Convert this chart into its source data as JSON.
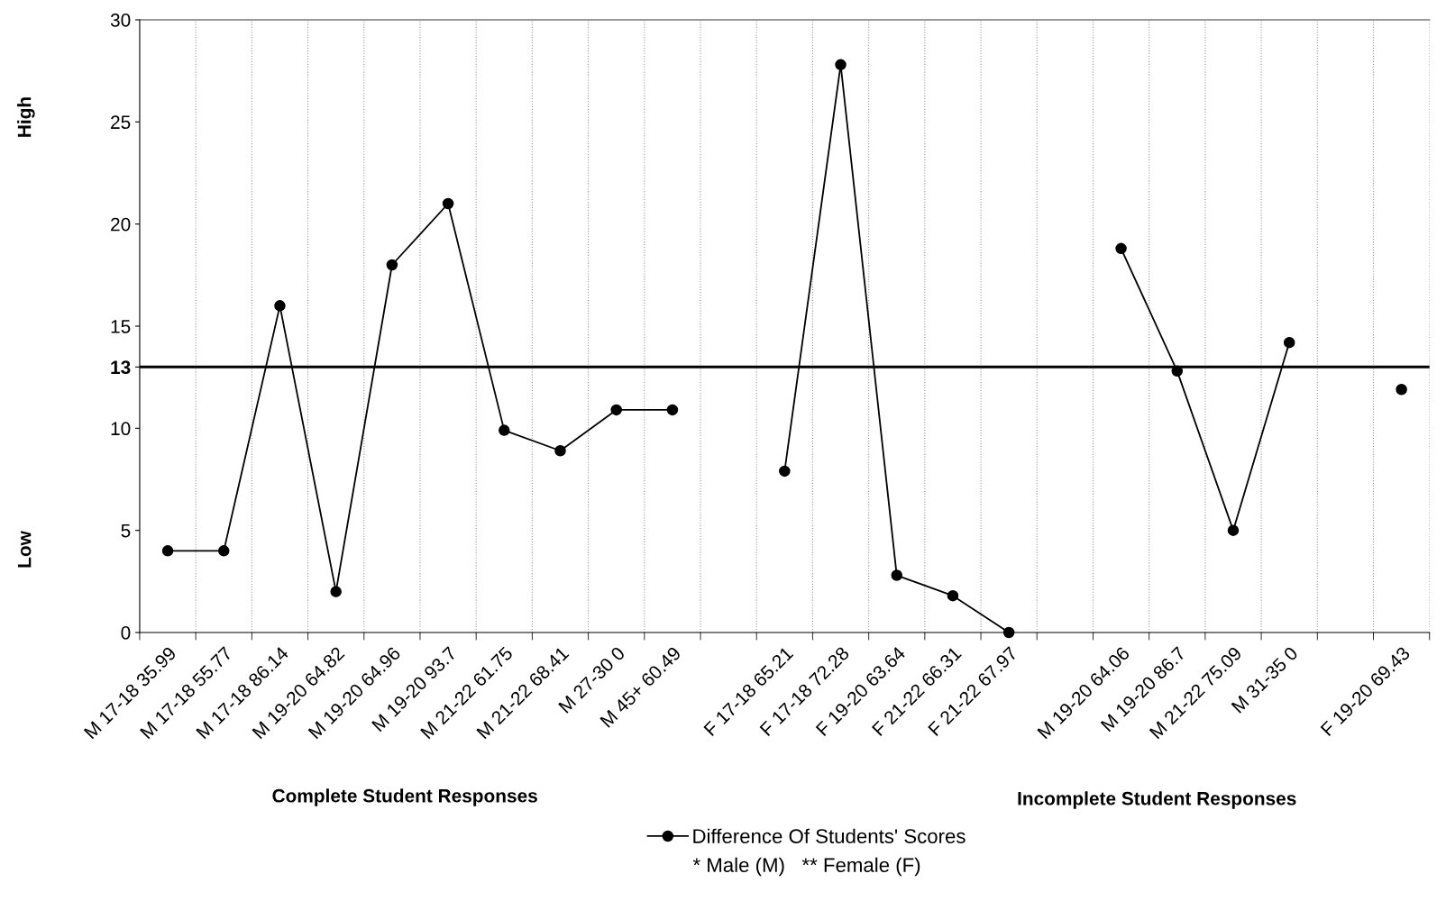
{
  "chart_data": {
    "type": "line",
    "categories": [
      "M 17-18 35.99",
      "M 17-18 55.77",
      "M 17-18 86.14",
      "M 19-20 64.82",
      "M 19-20 64.96",
      "M 19-20 93.7",
      "M 21-22 61.75",
      "M 21-22 68.41",
      "M 27-30 0",
      "M 45+ 60.49",
      null,
      "F 17-18 65.21",
      "F 17-18 72.28",
      "F 19-20 63.64",
      "F 21-22 66.31",
      "F 21-22 67.97",
      null,
      "M 19-20 64.06",
      "M 19-20 86.7",
      "M 21-22 75.09",
      "M 31-35 0",
      null,
      "F 19-20 69.43"
    ],
    "series": [
      {
        "name": "Difference Of Students' Scores",
        "color": "#000000",
        "values": [
          4,
          4,
          16,
          2,
          18,
          21,
          9.9,
          8.9,
          10.9,
          10.9,
          null,
          7.9,
          27.8,
          2.8,
          1.8,
          0,
          null,
          18.8,
          12.8,
          5,
          14.2,
          null,
          11.9
        ]
      }
    ],
    "ylim": [
      0,
      30
    ],
    "yticks": [
      0,
      5,
      10,
      13,
      15,
      20,
      25,
      30
    ],
    "ref_lines": [
      {
        "axis": "y",
        "value": 13,
        "color": "#000000"
      }
    ],
    "annotations": [
      "High",
      "Low",
      "Complete Student Responses",
      "Incomplete Student Responses",
      "* Male (M)   ** Female (F)"
    ],
    "grid": "x",
    "legend": "bottom",
    "marker": "circle",
    "line_style": "solid"
  }
}
